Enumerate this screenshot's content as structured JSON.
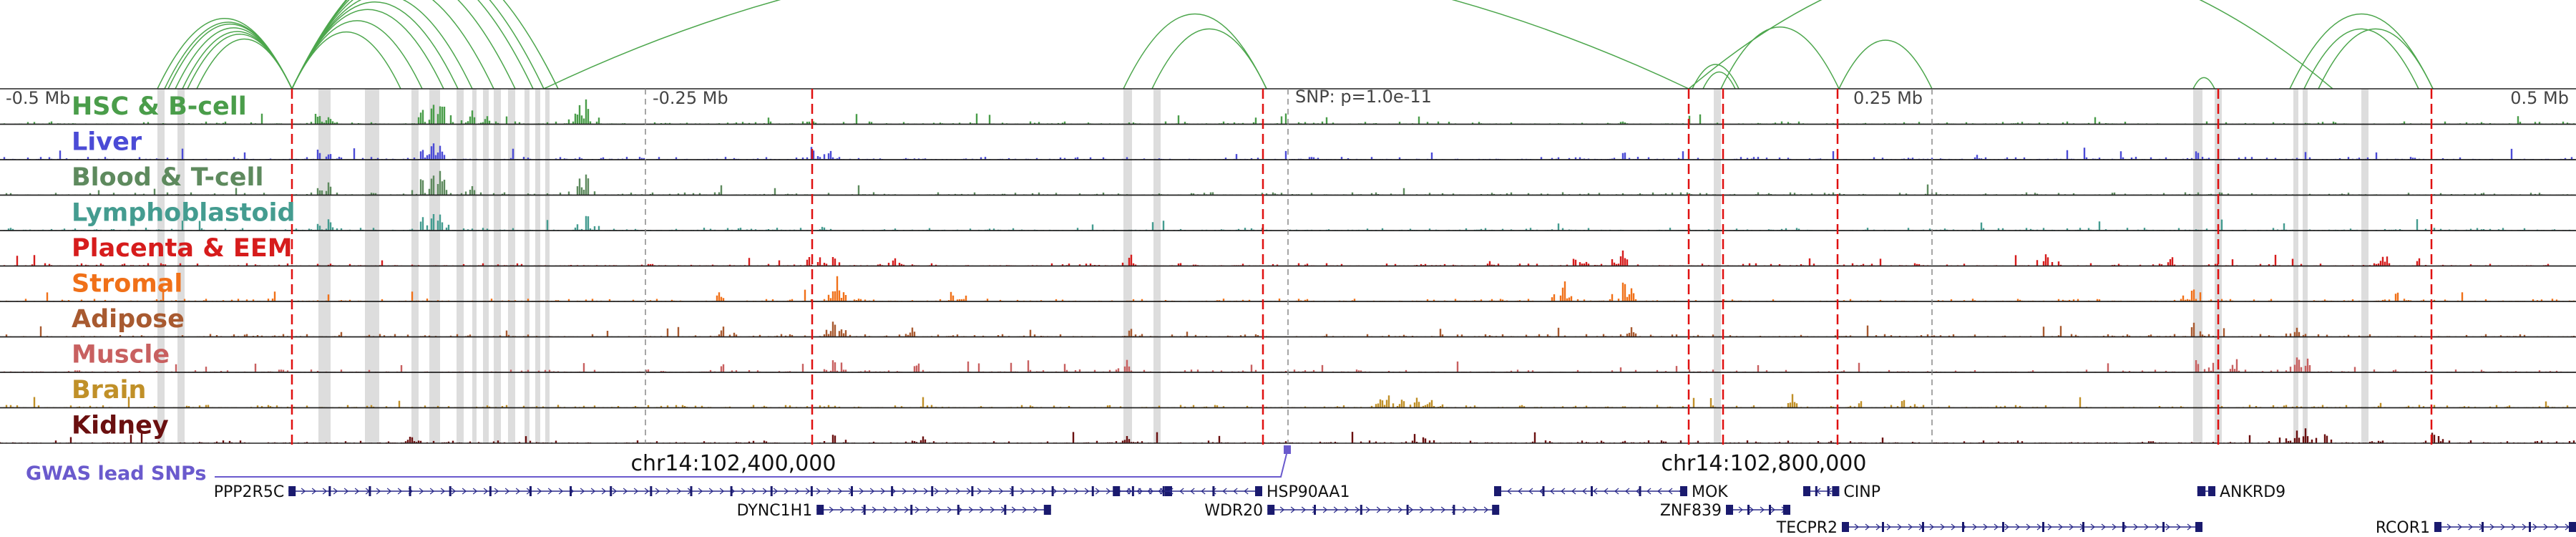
{
  "axis": {
    "minus_half": "-0.5 Mb",
    "minus_quarter": "-0.25 Mb",
    "snp_label": "SNP: p=1.0e-11",
    "plus_quarter": "0.25 Mb",
    "plus_half": "0.5 Mb"
  },
  "tracks": [
    {
      "name": "HSC & B-cell",
      "color": "#4a9d4a"
    },
    {
      "name": "Liver",
      "color": "#4b4bd6"
    },
    {
      "name": "Blood & T-cell",
      "color": "#5e8a5e"
    },
    {
      "name": "Lymphoblastoid",
      "color": "#449c90"
    },
    {
      "name": "Placenta & EEM",
      "color": "#d61c1c"
    },
    {
      "name": "Stromal",
      "color": "#f07018"
    },
    {
      "name": "Adipose",
      "color": "#a85a30"
    },
    {
      "name": "Muscle",
      "color": "#c86060"
    },
    {
      "name": "Brain",
      "color": "#c09028"
    },
    {
      "name": "Kidney",
      "color": "#6a0f0f"
    }
  ],
  "coordinates": {
    "left": "chr14:102,400,000",
    "right": "chr14:102,800,000"
  },
  "gwas_label": "GWAS lead SNPs",
  "gwas_color": "#6a5acd",
  "genes": [
    {
      "name": "PPP2R5C",
      "row": 0,
      "start": 0.112,
      "end": 0.455,
      "dir": "+",
      "label_side": "left"
    },
    {
      "name": "HSP90AA1",
      "row": 0,
      "start": 0.432,
      "end": 0.49,
      "dir": "-",
      "label_side": "right"
    },
    {
      "name": "MOK",
      "row": 0,
      "start": 0.58,
      "end": 0.655,
      "dir": "-",
      "label_side": "right"
    },
    {
      "name": "CINP",
      "row": 0,
      "start": 0.7,
      "end": 0.714,
      "dir": "-",
      "label_side": "right"
    },
    {
      "name": "ANKRD9",
      "row": 0,
      "start": 0.853,
      "end": 0.86,
      "dir": "-",
      "label_side": "right"
    },
    {
      "name": "DYNC1H1",
      "row": 1,
      "start": 0.317,
      "end": 0.408,
      "dir": "+",
      "label_side": "left"
    },
    {
      "name": "WDR20",
      "row": 1,
      "start": 0.492,
      "end": 0.582,
      "dir": "+",
      "label_side": "left"
    },
    {
      "name": "ZNF839",
      "row": 1,
      "start": 0.67,
      "end": 0.695,
      "dir": "+",
      "label_side": "left"
    },
    {
      "name": "TECPR2",
      "row": 2,
      "start": 0.715,
      "end": 0.855,
      "dir": "+",
      "label_side": "left"
    },
    {
      "name": "RCOR1",
      "row": 2,
      "start": 0.945,
      "end": 1.0,
      "dir": "+",
      "label_side": "left"
    }
  ],
  "loop_color": "#4ca64c",
  "highlight_color": "#dddddd",
  "snp_line_color": "#e01010"
}
